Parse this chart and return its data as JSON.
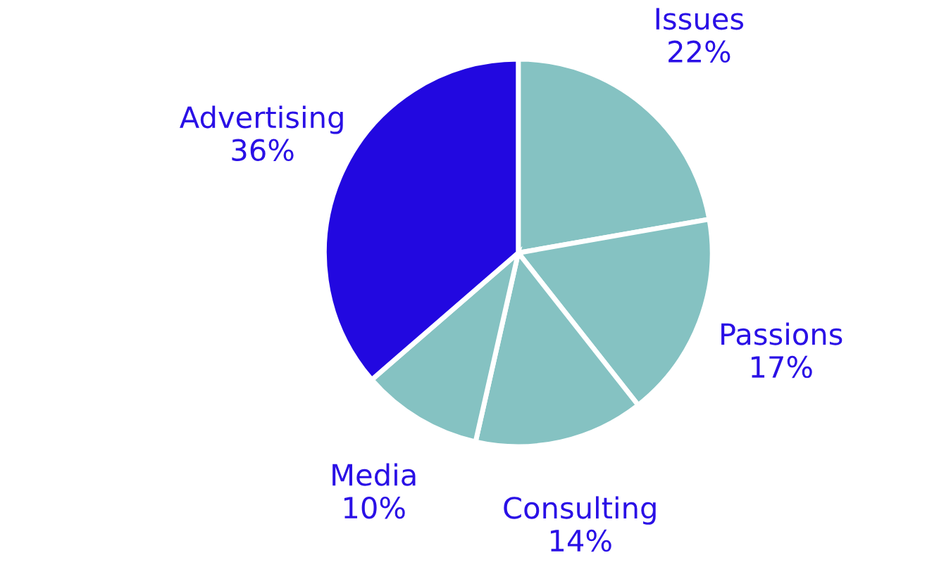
{
  "chart_data": {
    "type": "pie",
    "categories": [
      "Issues",
      "Passions",
      "Consulting",
      "Media",
      "Advertising"
    ],
    "values": [
      22,
      17,
      14,
      10,
      36
    ],
    "value_labels": [
      "22%",
      "17%",
      "14%",
      "10%",
      "36%"
    ],
    "colors": [
      "#85c2c2",
      "#85c2c2",
      "#85c2c2",
      "#85c2c2",
      "#2208e0"
    ]
  }
}
